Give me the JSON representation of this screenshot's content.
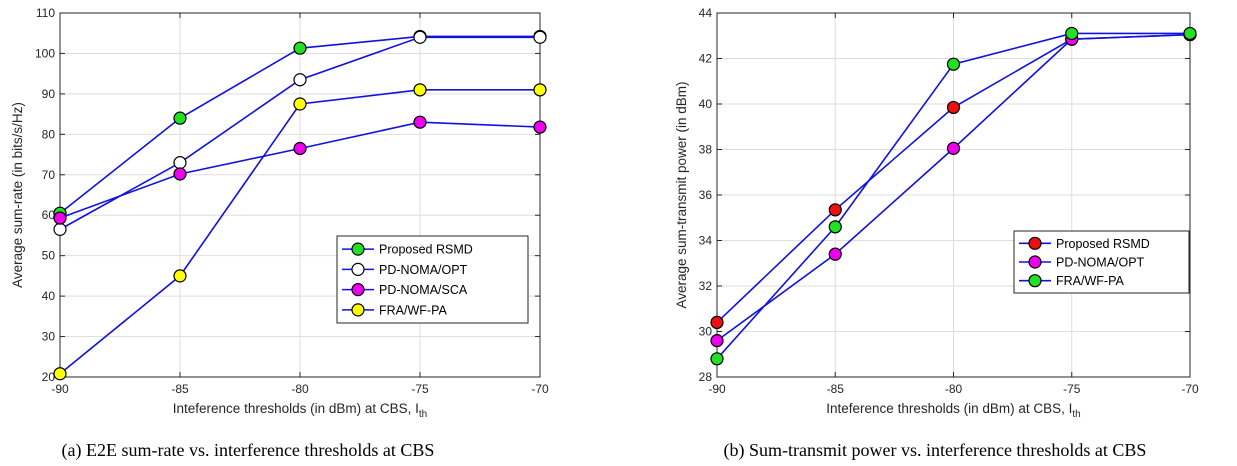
{
  "chart_data": [
    {
      "type": "line",
      "caption": "(a) E2E sum-rate vs. interference thresholds at CBS",
      "xlabel": "Inteference thresholds (in dBm) at CBS, I",
      "xlabel_sub": "th",
      "ylabel": "Average sum-rate (in bits/s/Hz)",
      "x": [
        -90,
        -85,
        -80,
        -75,
        -70
      ],
      "xlim": [
        -90,
        -70
      ],
      "ylim": [
        20,
        110
      ],
      "xticks": [
        -90,
        -85,
        -80,
        -75,
        -70
      ],
      "yticks": [
        20,
        30,
        40,
        50,
        60,
        70,
        80,
        90,
        100,
        110
      ],
      "grid": true,
      "legend_position": "lower-right",
      "line_color": "#1010e0",
      "series": [
        {
          "name": "Proposed RSMD",
          "values": [
            60.5,
            84,
            101.3,
            104.2,
            104.2
          ],
          "marker_fill": "#22e022"
        },
        {
          "name": "PD-NOMA/OPT",
          "values": [
            56.5,
            73,
            93.5,
            104,
            104
          ],
          "marker_fill": "#ffffff"
        },
        {
          "name": "PD-NOMA/SCA",
          "values": [
            59.3,
            70.2,
            76.5,
            83,
            81.8
          ],
          "marker_fill": "#ee00ee"
        },
        {
          "name": "FRA/WF-PA",
          "values": [
            20.8,
            45,
            87.5,
            91,
            91
          ],
          "marker_fill": "#ffff00"
        }
      ]
    },
    {
      "type": "line",
      "caption": "(b) Sum-transmit power vs. interference thresholds at CBS",
      "xlabel": "Inteference thresholds (in dBm) at CBS, I",
      "xlabel_sub": "th",
      "ylabel": "Average sum-transmit power (in dBm)",
      "x": [
        -90,
        -85,
        -80,
        -75,
        -70
      ],
      "xlim": [
        -90,
        -70
      ],
      "ylim": [
        28,
        44
      ],
      "xticks": [
        -90,
        -85,
        -80,
        -75,
        -70
      ],
      "yticks": [
        28,
        30,
        32,
        34,
        36,
        38,
        40,
        42,
        44
      ],
      "grid": true,
      "legend_position": "lower-right",
      "line_color": "#1010e0",
      "series": [
        {
          "name": "Proposed RSMD",
          "values": [
            30.4,
            35.35,
            39.85,
            42.85,
            43.05
          ],
          "marker_fill": "#ee1010"
        },
        {
          "name": "PD-NOMA/OPT",
          "values": [
            29.6,
            33.4,
            38.05,
            42.85,
            43.05
          ],
          "marker_fill": "#ee00ee"
        },
        {
          "name": "FRA/WF-PA",
          "values": [
            28.8,
            34.6,
            41.75,
            43.1,
            43.1
          ],
          "marker_fill": "#22e022"
        }
      ]
    }
  ]
}
